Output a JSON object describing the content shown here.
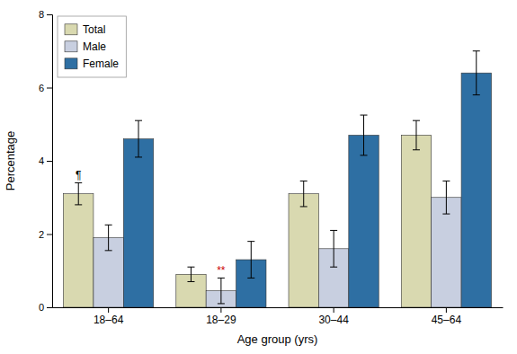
{
  "chart_data": {
    "type": "bar",
    "categories": [
      "18–64",
      "18–29",
      "30–44",
      "45–64"
    ],
    "xlabel": "Age group (yrs)",
    "ylabel": "Percentage",
    "ylim": [
      0,
      8
    ],
    "yticks": [
      0,
      2,
      4,
      6,
      8
    ],
    "grid": false,
    "legend": "upper left",
    "series": [
      {
        "name": "Total",
        "color": "#d9d9b0",
        "values": [
          3.1,
          0.9,
          3.1,
          4.7
        ],
        "err_low": [
          0.3,
          0.2,
          0.35,
          0.4
        ],
        "err_high": [
          0.3,
          0.2,
          0.35,
          0.4
        ]
      },
      {
        "name": "Male",
        "color": "#c8cfe0",
        "values": [
          1.9,
          0.45,
          1.6,
          3.0
        ],
        "err_low": [
          0.35,
          0.35,
          0.5,
          0.45
        ],
        "err_high": [
          0.35,
          0.35,
          0.5,
          0.45
        ]
      },
      {
        "name": "Female",
        "color": "#2e6fa3",
        "values": [
          4.6,
          1.3,
          4.7,
          6.4
        ],
        "err_low": [
          0.5,
          0.5,
          0.55,
          0.6
        ],
        "err_high": [
          0.5,
          0.5,
          0.55,
          0.6
        ]
      }
    ],
    "annotations": [
      {
        "text": "¶",
        "category": "18–64",
        "series": "Total"
      },
      {
        "text": "**",
        "category": "18–29",
        "series": "Male",
        "color": "#cc0000"
      }
    ]
  }
}
